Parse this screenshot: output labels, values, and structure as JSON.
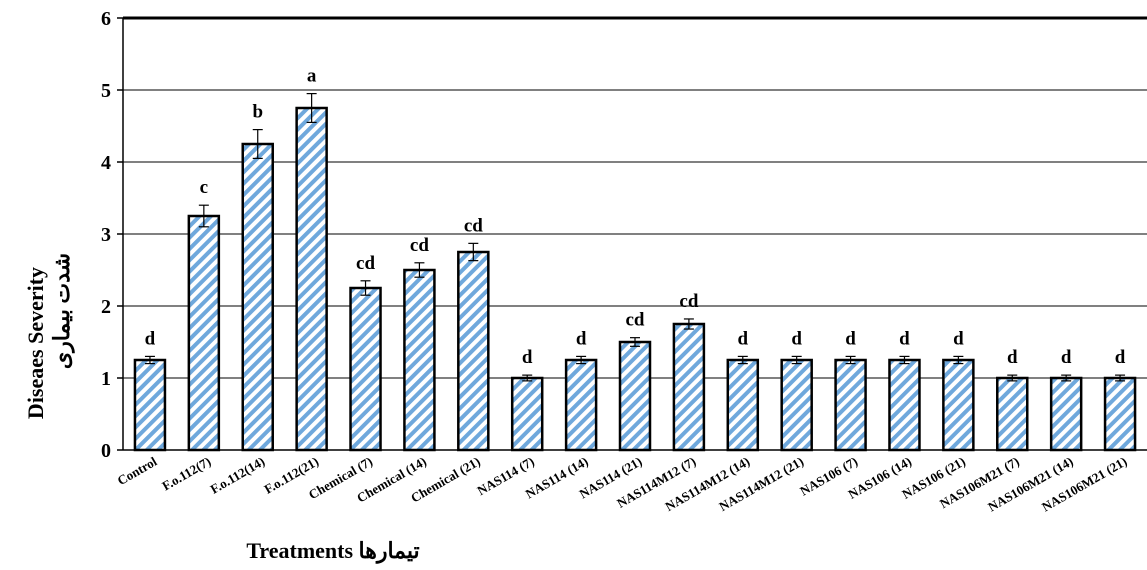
{
  "chart_data": {
    "type": "bar",
    "categories": [
      "Control",
      "F.o.112(7)",
      "F.o.112(14)",
      "F.o.112(21)",
      "Chemical (7)",
      "Chemical (14)",
      "Chemical (21)",
      "NAS114 (7)",
      "NAS114 (14)",
      "NAS114 (21)",
      "NAS114M12 (7)",
      "NAS114M12 (14)",
      "NAS114M12 (21)",
      "NAS106 (7)",
      "NAS106 (14)",
      "NAS106 (21)",
      "NAS106M21 (7)",
      "NAS106M21 (14)",
      "NAS106M21 (21)"
    ],
    "values": [
      1.25,
      3.25,
      4.25,
      4.75,
      2.25,
      2.5,
      2.75,
      1.0,
      1.25,
      1.5,
      1.75,
      1.25,
      1.25,
      1.25,
      1.25,
      1.25,
      1.0,
      1.0,
      1.0
    ],
    "error": [
      0.05,
      0.15,
      0.2,
      0.2,
      0.1,
      0.1,
      0.12,
      0.04,
      0.05,
      0.06,
      0.07,
      0.05,
      0.05,
      0.05,
      0.05,
      0.05,
      0.04,
      0.04,
      0.04
    ],
    "significance": [
      "d",
      "c",
      "b",
      "a",
      "cd",
      "cd",
      "cd",
      "d",
      "d",
      "cd",
      "cd",
      "d",
      "d",
      "d",
      "d",
      "d",
      "d",
      "d",
      "d"
    ],
    "ylim": [
      0,
      6
    ],
    "yticks": [
      "0",
      "1",
      "2",
      "3",
      "4",
      "5",
      "6"
    ],
    "title": "",
    "xlabel": "Treatments تیمارها",
    "ylabel": "Diseaes Severity",
    "ylabel2": "شدت بیماری",
    "grid": true,
    "colors": {
      "fill": "#6fa8dc",
      "stripe": "#ffffff",
      "border": "#000000",
      "grid": "#000000"
    }
  }
}
